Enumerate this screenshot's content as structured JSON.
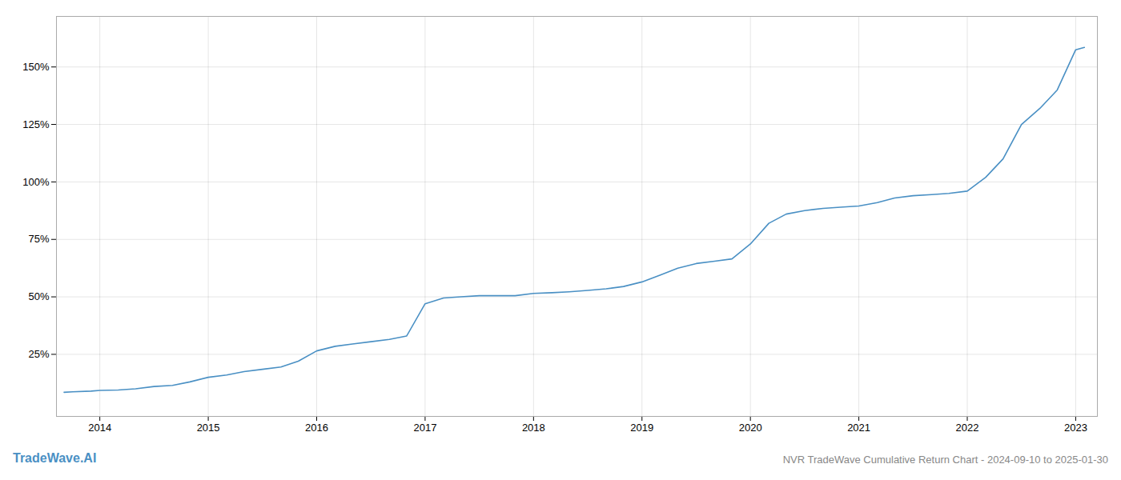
{
  "chart_data": {
    "type": "line",
    "title": "NVR TradeWave Cumulative Return Chart - 2024-09-10 to 2025-01-30",
    "annotations": [
      "TradeWave.AI"
    ],
    "color": "#4a90c4",
    "grid": true,
    "x": [
      2013.67,
      2013.75,
      2013.92,
      2014.0,
      2014.17,
      2014.33,
      2014.5,
      2014.67,
      2014.83,
      2015.0,
      2015.17,
      2015.33,
      2015.5,
      2015.67,
      2015.83,
      2016.0,
      2016.17,
      2016.33,
      2016.5,
      2016.67,
      2016.83,
      2017.0,
      2017.17,
      2017.33,
      2017.5,
      2017.67,
      2017.83,
      2018.0,
      2018.17,
      2018.33,
      2018.5,
      2018.67,
      2018.83,
      2019.0,
      2019.17,
      2019.33,
      2019.5,
      2019.67,
      2019.83,
      2020.0,
      2020.17,
      2020.33,
      2020.5,
      2020.67,
      2020.83,
      2021.0,
      2021.17,
      2021.33,
      2021.5,
      2021.67,
      2021.83,
      2022.0,
      2022.17,
      2022.33,
      2022.5,
      2022.67,
      2022.83,
      2023.0,
      2023.08
    ],
    "values": [
      0.085,
      0.087,
      0.09,
      0.093,
      0.095,
      0.1,
      0.11,
      0.115,
      0.13,
      0.15,
      0.16,
      0.175,
      0.185,
      0.195,
      0.22,
      0.265,
      0.285,
      0.295,
      0.305,
      0.315,
      0.33,
      0.47,
      0.495,
      0.5,
      0.505,
      0.505,
      0.505,
      0.515,
      0.518,
      0.522,
      0.528,
      0.535,
      0.545,
      0.565,
      0.595,
      0.625,
      0.645,
      0.655,
      0.665,
      0.73,
      0.82,
      0.86,
      0.875,
      0.885,
      0.89,
      0.895,
      0.91,
      0.93,
      0.94,
      0.945,
      0.95,
      0.96,
      1.02,
      1.1,
      1.25,
      1.32,
      1.4,
      1.575,
      1.585
    ],
    "xlim": [
      2013.6,
      2023.2
    ],
    "xticks": [
      2014,
      2015,
      2016,
      2017,
      2018,
      2019,
      2020,
      2021,
      2022,
      2023
    ],
    "ylim": [
      -0.02,
      1.72
    ],
    "yticks": [
      {
        "value": 0.25,
        "label": "25%"
      },
      {
        "value": 0.5,
        "label": "50%"
      },
      {
        "value": 0.75,
        "label": "75%"
      },
      {
        "value": 1.0,
        "label": "100%"
      },
      {
        "value": 1.25,
        "label": "125%"
      },
      {
        "value": 1.5,
        "label": "150%"
      }
    ]
  }
}
